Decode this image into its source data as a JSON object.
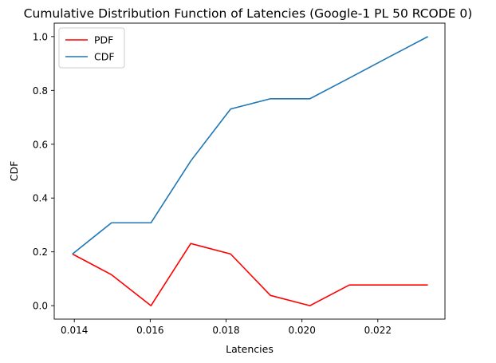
{
  "chart_data": {
    "type": "line",
    "title": "Cumulative Distribution Function of Latencies (Google-1 PL 50 RCODE 0)",
    "xlabel": "Latencies",
    "ylabel": "CDF",
    "xlim": [
      0.01347,
      0.02377
    ],
    "ylim": [
      -0.05,
      1.05
    ],
    "xticks": [
      0.014,
      0.016,
      0.018,
      0.02,
      0.022
    ],
    "xtick_labels": [
      "0.014",
      "0.016",
      "0.018",
      "0.020",
      "0.022"
    ],
    "yticks": [
      0.0,
      0.2,
      0.4,
      0.6,
      0.8,
      1.0
    ],
    "ytick_labels": [
      "0.0",
      "0.2",
      "0.4",
      "0.6",
      "0.8",
      "1.0"
    ],
    "grid": false,
    "legend_position": "top-left",
    "x": [
      0.01395,
      0.01498,
      0.01602,
      0.01707,
      0.01812,
      0.01917,
      0.02021,
      0.02125,
      0.02228,
      0.02332
    ],
    "series": [
      {
        "name": "PDF",
        "color": "#ff0000",
        "values": [
          0.192,
          0.115,
          0.0,
          0.231,
          0.192,
          0.038,
          0.0,
          0.077,
          0.077,
          0.077
        ]
      },
      {
        "name": "CDF",
        "color": "#1f77b4",
        "values": [
          0.192,
          0.308,
          0.308,
          0.538,
          0.731,
          0.769,
          0.769,
          0.846,
          0.923,
          1.0
        ]
      }
    ]
  }
}
